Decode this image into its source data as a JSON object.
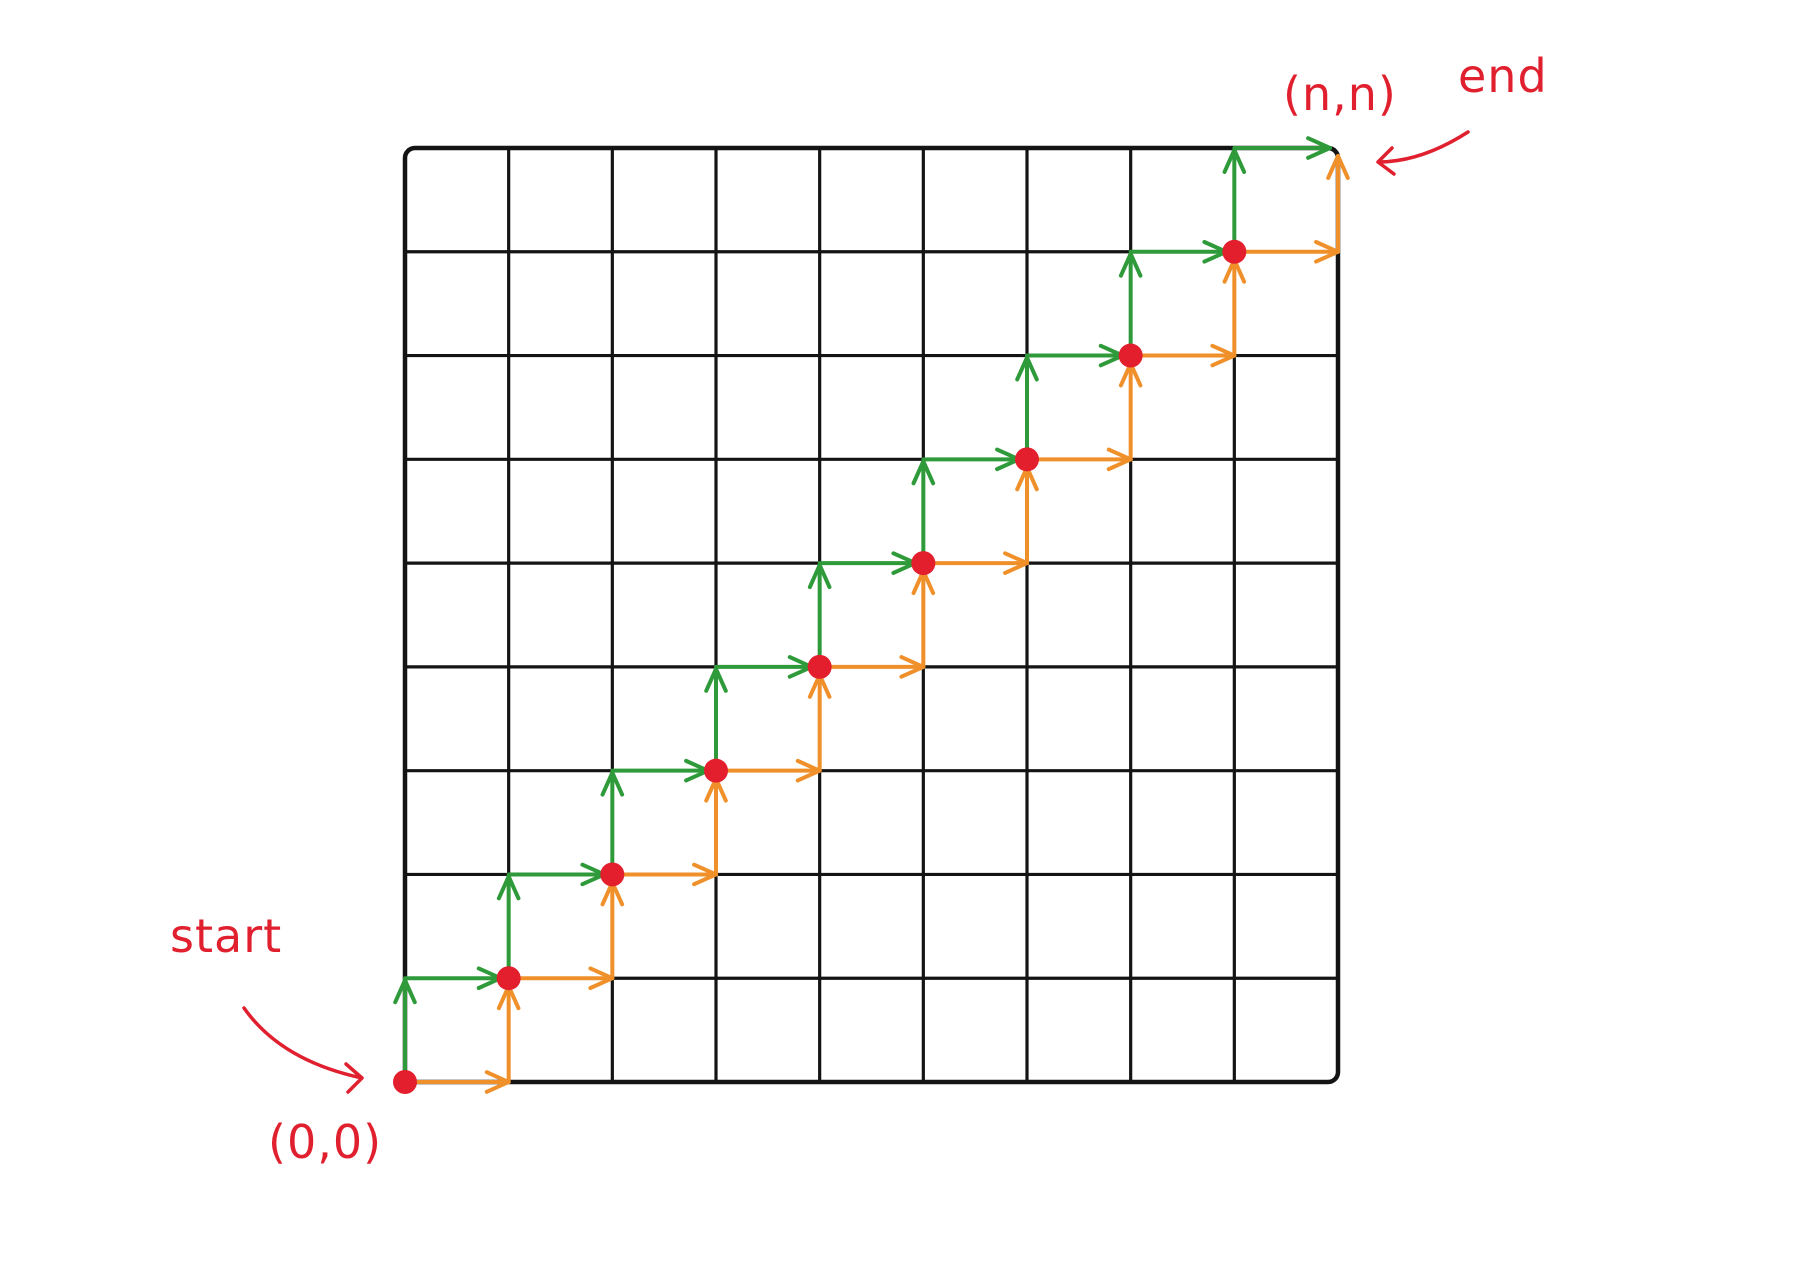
{
  "labels": {
    "start": "start",
    "end": "end",
    "origin": "(0,0)",
    "target": "(n,n)"
  },
  "grid": {
    "cells": 9
  },
  "colors": {
    "grid": "#141414",
    "green_path": "#2e9a3a",
    "orange_path": "#f0902a",
    "node": "#e31e2d",
    "annotation": "#e0202e"
  },
  "path": {
    "green": "up-then-right",
    "orange": "right-then-up",
    "nodes": [
      [
        0,
        0
      ],
      [
        1,
        1
      ],
      [
        2,
        2
      ],
      [
        3,
        3
      ],
      [
        4,
        4
      ],
      [
        5,
        5
      ],
      [
        6,
        6
      ],
      [
        7,
        7
      ],
      [
        8,
        8
      ],
      [
        9,
        9
      ]
    ]
  }
}
